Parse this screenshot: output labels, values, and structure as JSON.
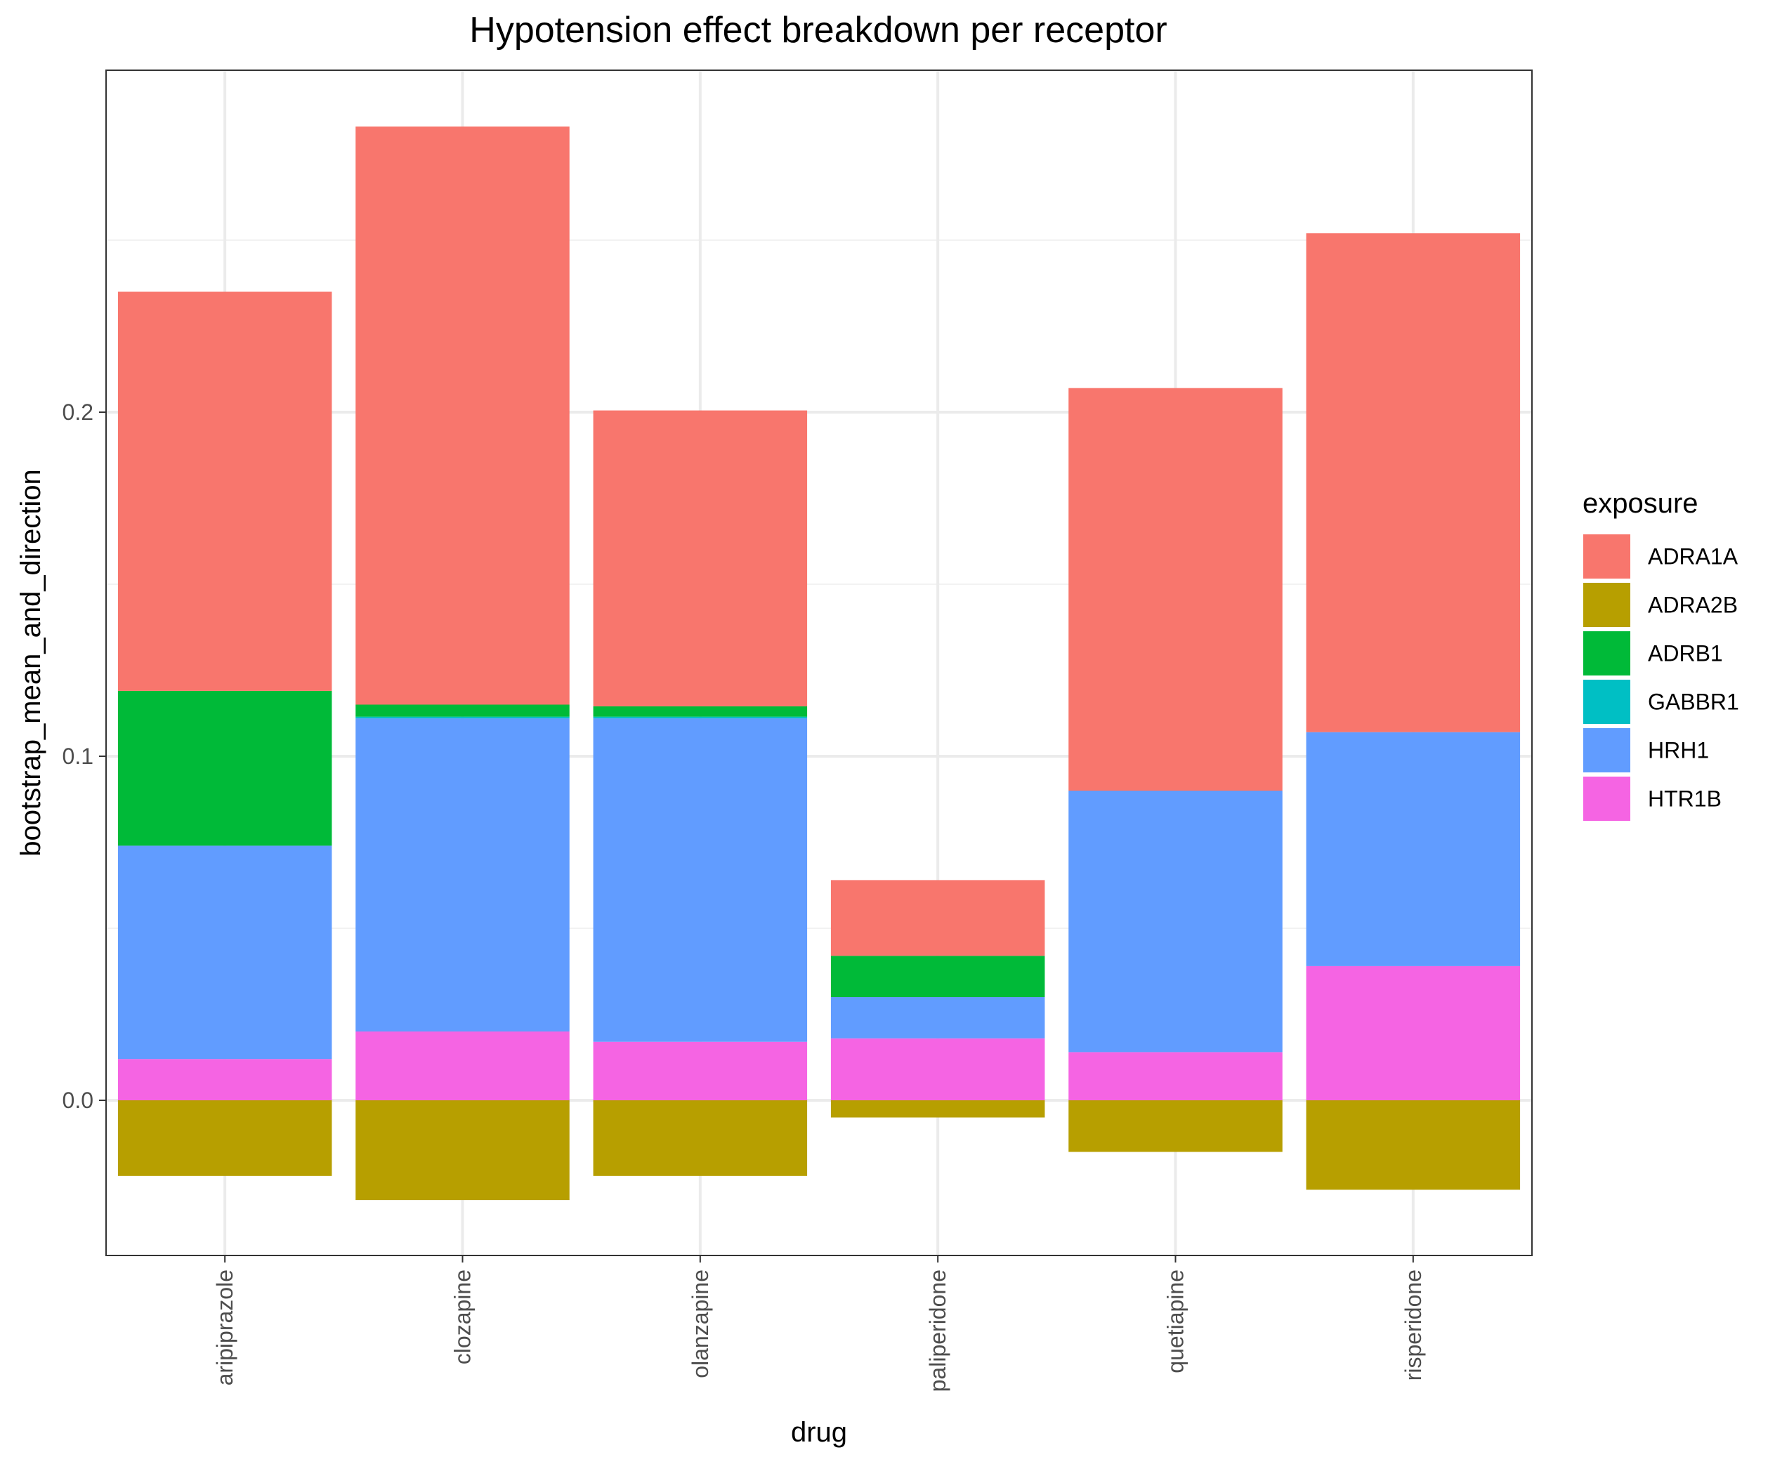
{
  "chart_data": {
    "type": "bar",
    "stacked": true,
    "title": "Hypotension effect breakdown per receptor",
    "xlabel": "drug",
    "ylabel": "bootstrap_mean_and_direction",
    "ylim": [
      -0.045,
      0.3
    ],
    "yticks": [
      0.0,
      0.1,
      0.2
    ],
    "ytick_labels": [
      "0.0",
      "0.1",
      "0.2"
    ],
    "grid": true,
    "legend": {
      "title": "exposure",
      "position": "right"
    },
    "categories": [
      "aripiprazole",
      "clozapine",
      "olanzapine",
      "paliperidone",
      "quetiapine",
      "risperidone"
    ],
    "series": [
      {
        "name": "ADRA1A",
        "color": "#F8766D",
        "values": [
          0.116,
          0.168,
          0.086,
          0.022,
          0.117,
          0.145
        ]
      },
      {
        "name": "ADRA2B",
        "color": "#B79F00",
        "values": [
          -0.022,
          -0.029,
          -0.022,
          -0.005,
          -0.015,
          -0.026
        ]
      },
      {
        "name": "ADRB1",
        "color": "#00BA38",
        "values": [
          0.045,
          0.0035,
          0.003,
          0.012,
          0.0,
          0.0
        ]
      },
      {
        "name": "GABBR1",
        "color": "#00BFC4",
        "values": [
          0.0,
          0.0005,
          0.0005,
          0.0,
          0.0,
          0.0
        ]
      },
      {
        "name": "HRH1",
        "color": "#619CFF",
        "values": [
          0.062,
          0.091,
          0.094,
          0.012,
          0.076,
          0.068
        ]
      },
      {
        "name": "HTR1B",
        "color": "#F564E3",
        "values": [
          0.012,
          0.02,
          0.017,
          0.018,
          0.014,
          0.039
        ]
      }
    ]
  }
}
